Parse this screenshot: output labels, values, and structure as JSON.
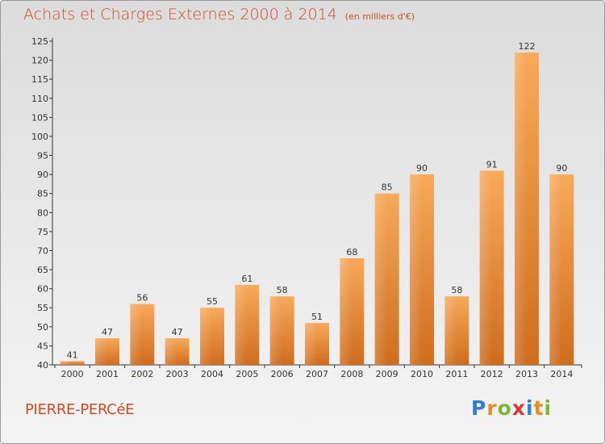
{
  "title": {
    "main": "Achats et Charges Externes 2000 à 2014",
    "unit": "(en milliers d'€)"
  },
  "commune": "PIERRE-PERCéE",
  "logo": {
    "letters": [
      "P",
      "r",
      "o",
      "x",
      "i",
      "t",
      "i"
    ],
    "colors": [
      "#2e7fd1",
      "#f08a1c",
      "#7cb636",
      "#d63b2f",
      "#2e7fd1",
      "#f08a1c",
      "#7cb636"
    ]
  },
  "chart_data": {
    "type": "bar",
    "categories": [
      "2000",
      "2001",
      "2002",
      "2003",
      "2004",
      "2005",
      "2006",
      "2007",
      "2008",
      "2009",
      "2010",
      "2011",
      "2012",
      "2013",
      "2014"
    ],
    "values": [
      41,
      47,
      56,
      47,
      55,
      61,
      58,
      51,
      68,
      85,
      90,
      58,
      91,
      122,
      90
    ],
    "ylim": [
      40,
      125
    ],
    "yticks": [
      "40",
      "45",
      "50",
      "55",
      "60",
      "65",
      "70",
      "75",
      "80",
      "85",
      "90",
      "95",
      "100",
      "105",
      "110",
      "115",
      "120",
      "125"
    ],
    "grid": false,
    "bar_color_light": "#f8a95a",
    "bar_color_dark": "#cf6d1e"
  }
}
